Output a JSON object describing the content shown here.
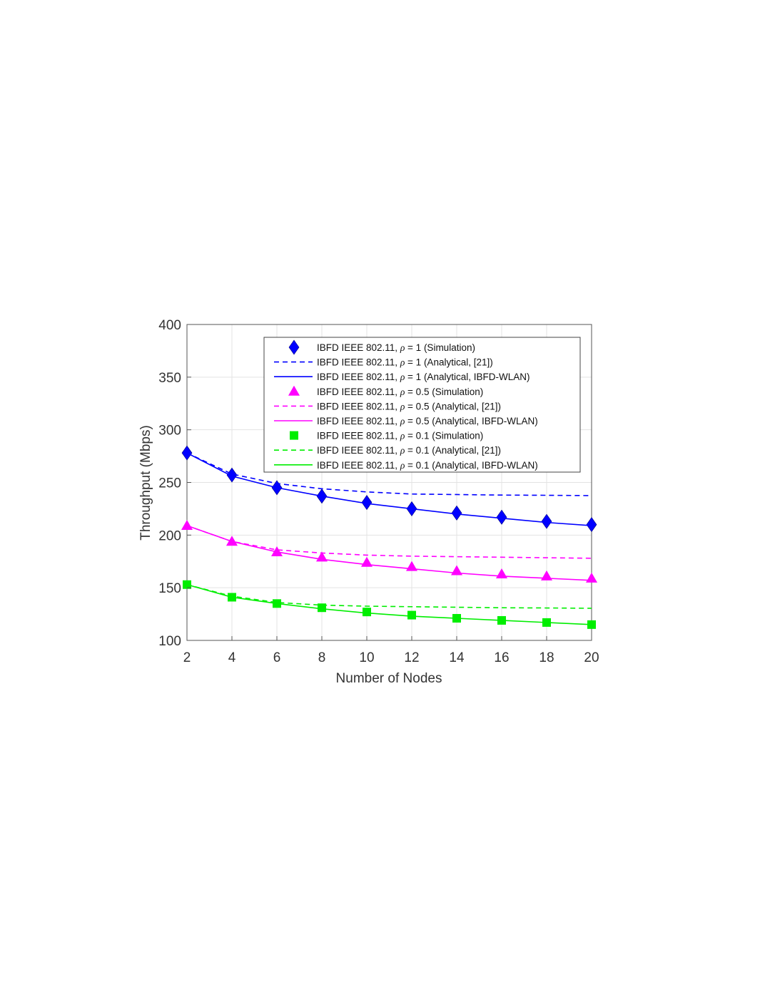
{
  "chart_data": {
    "type": "line",
    "xlabel": "Number of Nodes",
    "ylabel": "Throughput (Mbps)",
    "xlim": [
      2,
      20
    ],
    "ylim": [
      100,
      400
    ],
    "xticks": [
      2,
      4,
      6,
      8,
      10,
      12,
      14,
      16,
      18,
      20
    ],
    "yticks": [
      100,
      150,
      200,
      250,
      300,
      350,
      400
    ],
    "grid": true,
    "legend_position": "top-right",
    "x": [
      2,
      4,
      6,
      8,
      10,
      12,
      14,
      16,
      18,
      20
    ],
    "series": [
      {
        "name": "IBFD IEEE 802.11, ρ = 1 (Simulation)",
        "legend_prefix": "IBFD IEEE 802.11, ",
        "legend_rho": "ρ",
        "legend_suffix": " = 1 (Simulation)",
        "color": "#0000ff",
        "style": "marker",
        "marker": "diamond",
        "values": [
          278,
          257,
          245,
          237,
          231,
          225,
          221,
          217,
          213,
          210
        ]
      },
      {
        "name": "IBFD IEEE 802.11, ρ = 1 (Analytical, [21])",
        "legend_prefix": "IBFD IEEE 802.11, ",
        "legend_rho": "ρ",
        "legend_suffix": " = 1 (Analytical, [21])",
        "color": "#0000ff",
        "style": "dashed",
        "values": [
          278,
          258,
          249,
          244,
          241,
          239,
          238.5,
          238,
          237.8,
          237.5
        ]
      },
      {
        "name": "IBFD IEEE 802.11, ρ = 1 (Analytical, IBFD-WLAN)",
        "legend_prefix": "IBFD IEEE 802.11, ",
        "legend_rho": "ρ",
        "legend_suffix": " = 1 (Analytical, IBFD-WLAN)",
        "color": "#0000ff",
        "style": "solid",
        "values": [
          278,
          256,
          245,
          237,
          230,
          225,
          220,
          216,
          212,
          209
        ]
      },
      {
        "name": "IBFD IEEE 802.11, ρ = 0.5 (Simulation)",
        "legend_prefix": "IBFD IEEE 802.11, ",
        "legend_rho": "ρ",
        "legend_suffix": " = 0.5 (Simulation)",
        "color": "#ff00ff",
        "style": "marker",
        "marker": "triangle",
        "values": [
          209,
          194,
          184,
          179,
          174,
          170,
          166,
          163,
          161,
          159
        ]
      },
      {
        "name": "IBFD IEEE 802.11, ρ = 0.5 (Analytical, [21])",
        "legend_prefix": "IBFD IEEE 802.11, ",
        "legend_rho": "ρ",
        "legend_suffix": " = 0.5 (Analytical, [21])",
        "color": "#ff00ff",
        "style": "dashed",
        "values": [
          209,
          194,
          186,
          183,
          181,
          180,
          179.5,
          179,
          178.5,
          178
        ]
      },
      {
        "name": "IBFD IEEE 802.11, ρ = 0.5 (Analytical, IBFD-WLAN)",
        "legend_prefix": "IBFD IEEE 802.11, ",
        "legend_rho": "ρ",
        "legend_suffix": " = 0.5 (Analytical, IBFD-WLAN)",
        "color": "#ff00ff",
        "style": "solid",
        "values": [
          209,
          194,
          184,
          177,
          172,
          168,
          164,
          161,
          159,
          157
        ]
      },
      {
        "name": "IBFD IEEE 802.11, ρ = 0.1 (Simulation)",
        "legend_prefix": "IBFD IEEE 802.11, ",
        "legend_rho": "ρ",
        "legend_suffix": " = 0.1 (Simulation)",
        "color": "#00ee00",
        "style": "marker",
        "marker": "square",
        "values": [
          153,
          141,
          135,
          131,
          127,
          124,
          121,
          119,
          117,
          115
        ]
      },
      {
        "name": "IBFD IEEE 802.11, ρ = 0.1 (Analytical, [21])",
        "legend_prefix": "IBFD IEEE 802.11, ",
        "legend_rho": "ρ",
        "legend_suffix": " = 0.1 (Analytical, [21])",
        "color": "#00ee00",
        "style": "dashed",
        "values": [
          153,
          142,
          136,
          133.5,
          132.5,
          132,
          131.5,
          131,
          130.8,
          130.5
        ]
      },
      {
        "name": "IBFD IEEE 802.11, ρ = 0.1 (Analytical, IBFD-WLAN)",
        "legend_prefix": "IBFD IEEE 802.11, ",
        "legend_rho": "ρ",
        "legend_suffix": " = 0.1 (Analytical, IBFD-WLAN)",
        "color": "#00ee00",
        "style": "solid",
        "values": [
          153,
          141,
          135,
          130,
          126,
          123,
          121,
          119,
          117,
          115
        ]
      }
    ]
  }
}
